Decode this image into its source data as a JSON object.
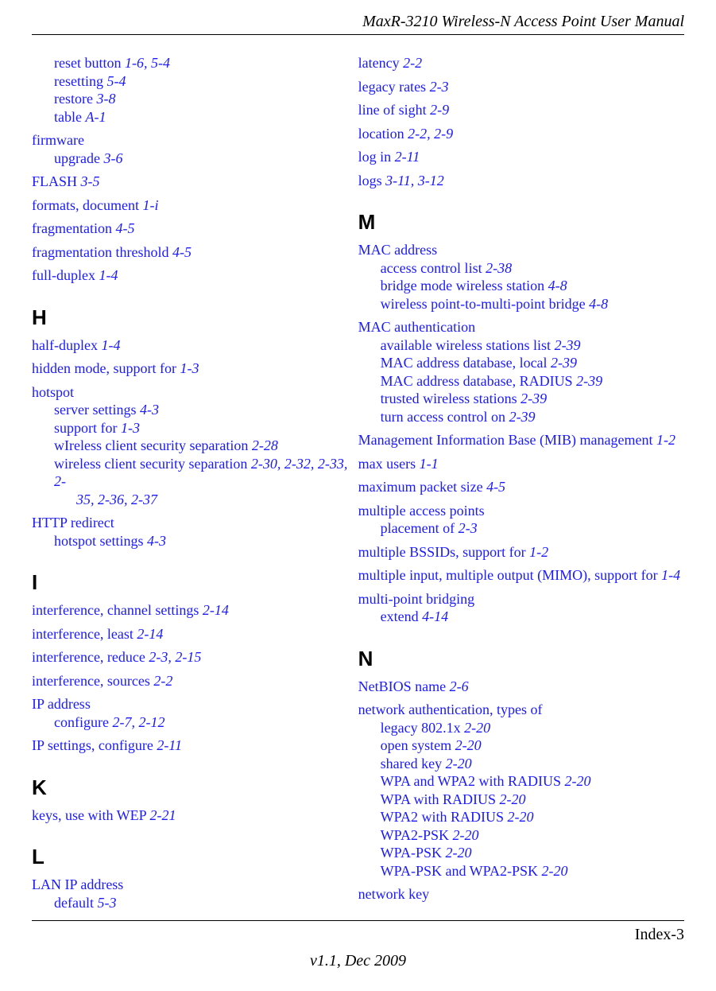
{
  "header": {
    "title": "MaxR-3210 Wireless-N Access Point User Manual"
  },
  "footer": {
    "page": "Index-3",
    "version": "v1.1, Dec 2009"
  },
  "left": {
    "cont1": {
      "l1": "reset button ",
      "p1": "1-6",
      "l2": "resetting ",
      "p2": "5-4",
      "l3": "restore ",
      "p3": "3-8",
      "l4": "table ",
      "p4": "A-1",
      "comma54": ", ",
      "p54": "5-4"
    },
    "firmware": {
      "head": "firmware",
      "l1": "upgrade ",
      "p1": "3-6"
    },
    "flash": {
      "t": "FLASH ",
      "p": "3-5"
    },
    "formats": {
      "t": "formats, document ",
      "p": "1-i"
    },
    "fragmentation": {
      "t": "fragmentation ",
      "p": "4-5"
    },
    "fragthresh": {
      "t": "fragmentation threshold ",
      "p": "4-5"
    },
    "fullduplex": {
      "t": "full-duplex ",
      "p": "1-4"
    },
    "H": "H",
    "halfduplex": {
      "t": "half-duplex ",
      "p": "1-4"
    },
    "hidden": {
      "t": "hidden mode, support for ",
      "p": "1-3"
    },
    "hotspot": {
      "head": "hotspot",
      "l1": "server settings ",
      "p1": "4-3",
      "l2": "support for ",
      "p2": "1-3",
      "l3": "wIreless client security separation ",
      "p3": "2-28",
      "l4": "wireless client security separation ",
      "p4a": "2-30",
      "c": ", ",
      "p4b": "2-32",
      "p4c": "2-33",
      "p4d": "2-35",
      "p4e": "2-36",
      "p4f": "2-37",
      "tail": "2-"
    },
    "httpredir": {
      "head": "HTTP redirect",
      "l1": "hotspot settings ",
      "p1": "4-3"
    },
    "I": "I",
    "intf1": {
      "t": "interference, channel settings ",
      "p": "2-14"
    },
    "intf2": {
      "t": "interference, least ",
      "p": "2-14"
    },
    "intf3": {
      "t": "interference, reduce ",
      "p1": "2-3",
      "c": ", ",
      "p2": "2-15"
    },
    "intf4": {
      "t": "interference, sources ",
      "p": "2-2"
    },
    "ipaddr": {
      "head": "IP address",
      "l1": "configure ",
      "p1": "2-7",
      "c": ", ",
      "p2": "2-12"
    },
    "ipset": {
      "t": "IP settings, configure ",
      "p": "2-11"
    },
    "K": "K",
    "keys": {
      "t": "keys, use with WEP ",
      "p": "2-21"
    },
    "L": "L",
    "lanip": {
      "head": "LAN IP address",
      "l1": "default ",
      "p1": "5-3"
    }
  },
  "right": {
    "latency": {
      "t": "latency ",
      "p": "2-2"
    },
    "legacy": {
      "t": "legacy rates ",
      "p": "2-3"
    },
    "los": {
      "t": "line of sight ",
      "p": "2-9"
    },
    "loc": {
      "t": "location ",
      "p1": "2-2",
      "c": ", ",
      "p2": "2-9"
    },
    "login": {
      "t": "log in ",
      "p": "2-11"
    },
    "logs": {
      "t": "logs ",
      "p1": "3-11",
      "c": ", ",
      "p2": "3-12"
    },
    "M": "M",
    "macaddr": {
      "head": "MAC address",
      "l1": "access control list ",
      "p1": "2-38",
      "l2": "bridge mode wireless station ",
      "p2": "4-8",
      "l3": "wireless point-to-multi-point bridge ",
      "p3": "4-8"
    },
    "macauth": {
      "head": "MAC authentication",
      "l1": "available wireless stations list ",
      "p1": "2-39",
      "l2": "MAC address database, local ",
      "p2": "2-39",
      "l3": "MAC address database, RADIUS ",
      "p3": "2-39",
      "l4": "trusted wireless stations ",
      "p4": "2-39",
      "l5": "turn access control on ",
      "p5": "2-39"
    },
    "mib": {
      "t": "Management Information Base (MIB) management ",
      "p": "1-2"
    },
    "maxusers": {
      "t": "max users ",
      "p": "1-1"
    },
    "maxpkt": {
      "t": "maximum packet size ",
      "p": "4-5"
    },
    "multiap": {
      "head": "multiple access points",
      "l1": "placement of ",
      "p1": "2-3"
    },
    "multibssid": {
      "t": "multiple BSSIDs, support for ",
      "p": "1-2"
    },
    "mimo": {
      "t": "multiple input, multiple output (MIMO), support for ",
      "p": "1-4"
    },
    "mpb": {
      "head": "multi-point bridging",
      "l1": "extend ",
      "p1": "4-14"
    },
    "N": "N",
    "netbios": {
      "t": "NetBIOS name ",
      "p": "2-6"
    },
    "netauth": {
      "head": "network authentication, types of",
      "l1": "legacy 802.1x ",
      "p1": "2-20",
      "l2": "open system ",
      "p2": "2-20",
      "l3": "shared key ",
      "p3": "2-20",
      "l4": "WPA and WPA2 with RADIUS ",
      "p4": "2-20",
      "l5": "WPA with RADIUS ",
      "p5": "2-20",
      "l6": "WPA2 with RADIUS ",
      "p6": "2-20",
      "l7": "WPA2-PSK ",
      "p7": "2-20",
      "l8": "WPA-PSK ",
      "p8": "2-20",
      "l9": "WPA-PSK and WPA2-PSK ",
      "p9": "2-20"
    },
    "netkey": {
      "t": "network key"
    }
  }
}
